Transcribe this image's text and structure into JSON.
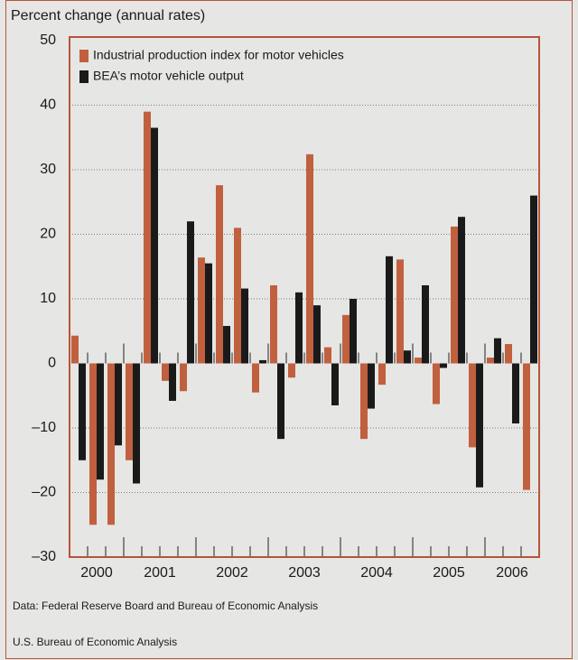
{
  "chart_data": {
    "type": "bar",
    "y_axis_title": "Percent change (annual rates)",
    "source": "Data: Federal Reserve Board and Bureau of Economic Analysis",
    "credit": "U.S. Bureau of Economic Analysis",
    "categories": [
      null,
      null,
      null,
      null,
      null,
      null,
      null,
      null,
      null,
      null,
      null,
      null,
      null,
      null,
      null,
      null,
      null,
      null,
      null,
      null,
      null,
      null,
      null,
      null,
      null,
      null
    ],
    "x_groups": [
      {
        "label": "2000",
        "quarters": 3
      },
      {
        "label": "2001",
        "quarters": 4
      },
      {
        "label": "2002",
        "quarters": 4
      },
      {
        "label": "2003",
        "quarters": 4
      },
      {
        "label": "2004",
        "quarters": 4
      },
      {
        "label": "2005",
        "quarters": 4
      },
      {
        "label": "2006",
        "quarters": 3
      }
    ],
    "series": [
      {
        "name": "Industrial production index for motor vehicles",
        "color": "#c0603f",
        "values": [
          4.3,
          -25,
          -25,
          -15,
          39,
          -2.7,
          -4.3,
          16.4,
          27.6,
          21,
          -4.5,
          12.1,
          -2.2,
          32.4,
          2.5,
          7.5,
          -11.7,
          -3.3,
          16.1,
          0.9,
          -6.3,
          21.2,
          -13,
          0.9,
          3,
          -19.6
        ]
      },
      {
        "name": "BEA’s motor vehicle output",
        "color": "#1a1a1a",
        "values": [
          -15,
          -18,
          -12.7,
          -18.6,
          36.5,
          -5.8,
          22,
          15.5,
          5.8,
          11.6,
          0.5,
          -11.7,
          11,
          9,
          -6.5,
          10,
          -7,
          16.6,
          2,
          12.1,
          -0.7,
          22.7,
          -19.2,
          3.9,
          -9.3,
          26
        ]
      }
    ],
    "ylim": [
      -30,
      50
    ],
    "yticks": [
      {
        "value": -30,
        "label": "–30"
      },
      {
        "value": -20,
        "label": "–20"
      },
      {
        "value": -10,
        "label": "–10"
      },
      0,
      10,
      20,
      30,
      40,
      50
    ],
    "grid": true,
    "legend": "top-left"
  }
}
